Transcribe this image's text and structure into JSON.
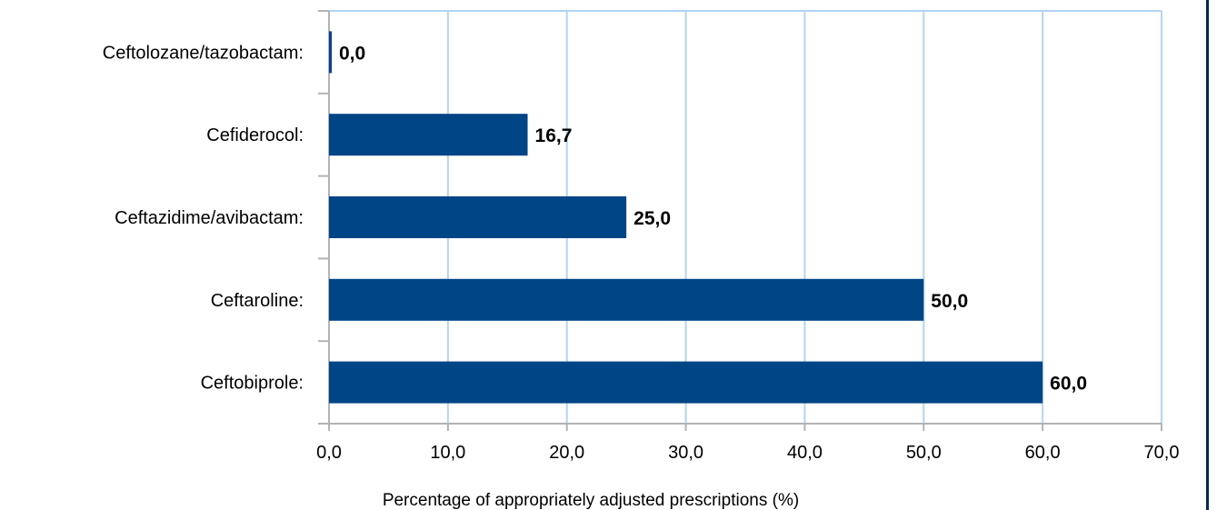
{
  "chart_data": {
    "type": "bar",
    "orientation": "horizontal",
    "categories": [
      "Ceftolozane/tazobactam:",
      "Cefiderocol:",
      "Ceftazidime/avibactam:",
      "Ceftaroline:",
      "Ceftobiprole:"
    ],
    "values": [
      0.0,
      16.7,
      25.0,
      50.0,
      60.0
    ],
    "value_labels": [
      "0,0",
      "16,7",
      "25,0",
      "50,0",
      "60,0"
    ],
    "xlabel": "Percentage of appropriately adjusted prescriptions (%)",
    "ylabel": "",
    "title": "",
    "xlim": [
      0,
      70
    ],
    "x_ticks": [
      0,
      10,
      20,
      30,
      40,
      50,
      60,
      70
    ],
    "x_tick_labels": [
      "0,0",
      "10,0",
      "20,0",
      "30,0",
      "40,0",
      "50,0",
      "60,0",
      "70,0"
    ],
    "grid": true,
    "legend": "none",
    "colors": {
      "bar": "#004586",
      "grid": "#b3d5f2",
      "axis": "#b3b3b3",
      "frame": "#06294f",
      "text": "#000000"
    }
  }
}
